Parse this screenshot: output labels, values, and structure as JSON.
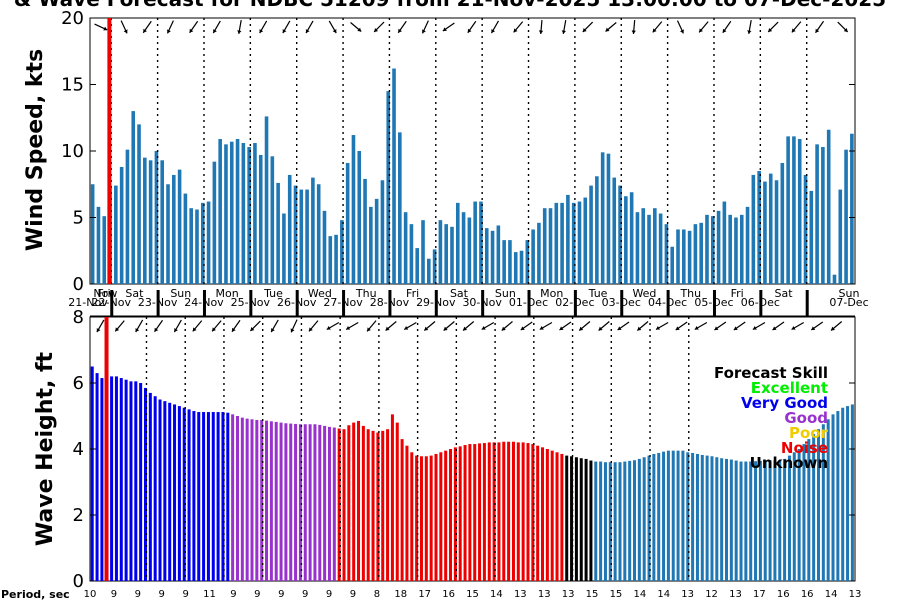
{
  "title": "& Wave Forecast for NDBC 51209 from 21-Nov-2025 13:00:00 to 07-Dec-2025",
  "colors": {
    "bar": "#1f77b4",
    "now_line": "#ee0000",
    "skill_excellent": "#00ee00",
    "skill_very_good": "#0000ee",
    "skill_good": "#9932cc",
    "skill_poor": "#eecc00",
    "skill_noise": "#ee0000",
    "skill_unknown": "#000000"
  },
  "now_label": "Now",
  "period_label": "Period, sec",
  "days": [
    {
      "dow": "Fri",
      "date": "21-Nov"
    },
    {
      "dow": "Sat",
      "date": "22-Nov"
    },
    {
      "dow": "Sun",
      "date": "23-Nov"
    },
    {
      "dow": "Mon",
      "date": "24-Nov"
    },
    {
      "dow": "Tue",
      "date": "25-Nov"
    },
    {
      "dow": "Wed",
      "date": "26-Nov"
    },
    {
      "dow": "Thu",
      "date": "27-Nov"
    },
    {
      "dow": "Fri",
      "date": "28-Nov"
    },
    {
      "dow": "Sat",
      "date": "29-Nov"
    },
    {
      "dow": "Sun",
      "date": "30-Nov"
    },
    {
      "dow": "Mon",
      "date": "01-Dec"
    },
    {
      "dow": "Tue",
      "date": "02-Dec"
    },
    {
      "dow": "Wed",
      "date": "03-Dec"
    },
    {
      "dow": "Thu",
      "date": "04-Dec"
    },
    {
      "dow": "Fri",
      "date": "05-Dec"
    },
    {
      "dow": "Sat",
      "date": "06-Dec"
    },
    {
      "dow": "Sun",
      "date": "07-Dec"
    }
  ],
  "legend": {
    "title": "Forecast Skill",
    "items": [
      "Excellent",
      "Very Good",
      "Good",
      "Poor",
      "Noise",
      "Unknown"
    ]
  },
  "chart_data": [
    {
      "type": "bar",
      "ylabel": "Wind Speed, kts",
      "ylim": [
        0,
        20
      ],
      "yticks": [
        0,
        5,
        10,
        15,
        20
      ],
      "x_start": "21-Nov-2025 13:00:00",
      "x_end": "07-Dec-2025",
      "step_hours": 3,
      "values": [
        7.5,
        5.8,
        5.1,
        7.4,
        7.4,
        8.8,
        10.1,
        13.0,
        12.0,
        9.5,
        9.3,
        10.0,
        9.3,
        7.5,
        8.2,
        8.6,
        6.8,
        5.7,
        5.6,
        6.1,
        6.2,
        9.2,
        10.9,
        10.5,
        10.7,
        10.9,
        10.6,
        10.3,
        10.6,
        9.7,
        12.6,
        9.6,
        7.6,
        5.3,
        8.2,
        7.4,
        7.1,
        7.1,
        8.0,
        7.5,
        5.5,
        3.6,
        3.7,
        4.8,
        9.1,
        11.2,
        10.0,
        7.9,
        5.8,
        6.4,
        7.8,
        14.5,
        16.2,
        11.4,
        5.4,
        4.5,
        2.7,
        4.8,
        1.9,
        2.6,
        4.8,
        4.5,
        4.3,
        6.1,
        5.4,
        5.0,
        6.2,
        6.2,
        4.2,
        4.0,
        4.4,
        3.3,
        3.3,
        2.4,
        2.5,
        3.3,
        4.1,
        4.6,
        5.7,
        5.7,
        6.1,
        6.1,
        6.7,
        6.1,
        6.2,
        6.5,
        7.4,
        8.1,
        9.9,
        9.8,
        8.0,
        7.4,
        6.6,
        6.9,
        5.4,
        5.7,
        5.2,
        5.7,
        5.3,
        4.5,
        2.8,
        4.1,
        4.1,
        4.0,
        4.5,
        4.6,
        5.2,
        5.1,
        5.5,
        6.2,
        5.2,
        5.0,
        5.2,
        5.8,
        8.2,
        8.5,
        7.7,
        8.3,
        7.8,
        9.1,
        11.1,
        11.1,
        10.9,
        8.2,
        7.0,
        10.5,
        10.3,
        11.6,
        0.7,
        7.1,
        10.1,
        11.3
      ],
      "wind_dir_deg": [
        25,
        20,
        20,
        55,
        65,
        70,
        110,
        120,
        125,
        130,
        125,
        120,
        115,
        115,
        120,
        120,
        125,
        120,
        120,
        125,
        120,
        115,
        105,
        110,
        100,
        130,
        135,
        115,
        120,
        130,
        110,
        120,
        120,
        125,
        135,
        130,
        120,
        135,
        135,
        45,
        60,
        65,
        55,
        55,
        40,
        130,
        125,
        130,
        135,
        135,
        135,
        135,
        125,
        110,
        115,
        125,
        115,
        115,
        130,
        150,
        145,
        140,
        95,
        120,
        125,
        125,
        115,
        115,
        120,
        110,
        120,
        100,
        130,
        120,
        100,
        100,
        95,
        95,
        80,
        60,
        100,
        120,
        125,
        130,
        135,
        130,
        130,
        115,
        140,
        125,
        125,
        100,
        95,
        115,
        130,
        125,
        130,
        45,
        60,
        70,
        65,
        120,
        130,
        135,
        130,
        125,
        125,
        130,
        125,
        125,
        130,
        120,
        100,
        120,
        135,
        130,
        135,
        125,
        110,
        130,
        130,
        130,
        120,
        130,
        125,
        120,
        130,
        130,
        45,
        55,
        95,
        35
      ]
    },
    {
      "type": "bar",
      "ylabel": "Wave Height, ft",
      "ylim": [
        0,
        8
      ],
      "yticks": [
        0,
        2,
        4,
        6,
        8
      ],
      "x_start": "21-Nov-2025 13:00:00",
      "x_end": "07-Dec-2025",
      "step_hours": 3,
      "values": [
        6.5,
        6.3,
        6.15,
        6.15,
        6.2,
        6.2,
        6.15,
        6.1,
        6.05,
        6.05,
        6.0,
        5.85,
        5.7,
        5.6,
        5.5,
        5.45,
        5.4,
        5.35,
        5.3,
        5.25,
        5.2,
        5.15,
        5.12,
        5.12,
        5.12,
        5.12,
        5.12,
        5.12,
        5.1,
        5.05,
        5.0,
        4.95,
        4.92,
        4.9,
        4.88,
        4.88,
        4.86,
        4.84,
        4.82,
        4.8,
        4.78,
        4.77,
        4.76,
        4.75,
        4.75,
        4.75,
        4.75,
        4.73,
        4.7,
        4.67,
        4.65,
        4.62,
        4.6,
        4.72,
        4.8,
        4.85,
        4.7,
        4.6,
        4.55,
        4.5,
        4.55,
        4.6,
        5.05,
        4.8,
        4.3,
        4.1,
        3.9,
        3.8,
        3.78,
        3.78,
        3.8,
        3.85,
        3.9,
        3.95,
        4.0,
        4.05,
        4.08,
        4.12,
        4.15,
        4.15,
        4.17,
        4.18,
        4.2,
        4.2,
        4.2,
        4.22,
        4.22,
        4.22,
        4.2,
        4.2,
        4.18,
        4.15,
        4.1,
        4.05,
        4.0,
        3.95,
        3.9,
        3.85,
        3.8,
        3.78,
        3.75,
        3.72,
        3.7,
        3.65,
        3.62,
        3.62,
        3.6,
        3.6,
        3.6,
        3.6,
        3.62,
        3.64,
        3.66,
        3.7,
        3.75,
        3.8,
        3.85,
        3.88,
        3.92,
        3.95,
        3.95,
        3.95,
        3.95,
        3.9,
        3.88,
        3.85,
        3.82,
        3.8,
        3.78,
        3.75,
        3.72,
        3.7,
        3.68,
        3.65,
        3.62,
        3.62,
        3.62,
        3.63,
        3.64,
        3.65,
        3.66,
        3.66,
        3.66,
        3.7,
        3.8,
        3.9,
        4.0,
        4.15,
        4.3,
        4.45,
        4.6,
        4.75,
        4.9,
        5.05,
        5.15,
        5.25,
        5.3,
        5.35
      ],
      "skill": [
        "very_good",
        "good",
        "noise",
        "unknown",
        "none"
      ],
      "skill_ranges": [
        [
          0,
          28,
          "very_good"
        ],
        [
          29,
          50,
          "good"
        ],
        [
          51,
          97,
          "noise"
        ],
        [
          98,
          103,
          "unknown"
        ],
        [
          104,
          200,
          "none"
        ]
      ],
      "wave_dir_deg": [
        120,
        130,
        120,
        125,
        130,
        130,
        120,
        125,
        120,
        125,
        120,
        130,
        125,
        130,
        120,
        125,
        120,
        125,
        130,
        115,
        130,
        125,
        130,
        110,
        130,
        125,
        135,
        130,
        125,
        125,
        130,
        120,
        135,
        130,
        135,
        130,
        120,
        125,
        130,
        125,
        115,
        130,
        125,
        120,
        130,
        135,
        140,
        145,
        150,
        145,
        150,
        140,
        150,
        140,
        150,
        145,
        130,
        125,
        130,
        125,
        140,
        135,
        125,
        145,
        150,
        145,
        150,
        145,
        140,
        150,
        145,
        150,
        140,
        145,
        150,
        145,
        140,
        150,
        145,
        140,
        150,
        145,
        150,
        145,
        140,
        145,
        150,
        140,
        145,
        150,
        140,
        145,
        150,
        145,
        140,
        150,
        145,
        140,
        150,
        145,
        140,
        145,
        150,
        145,
        140,
        150,
        145,
        150,
        145,
        140,
        150,
        145,
        140,
        150,
        145,
        140,
        150,
        145,
        140,
        150,
        145,
        140,
        150,
        145,
        150,
        145,
        140,
        150,
        145,
        150,
        145,
        140,
        145,
        150,
        145,
        140,
        150,
        145,
        140,
        150,
        145,
        150,
        145,
        140,
        150,
        145,
        140,
        150,
        145,
        140,
        150,
        145,
        140
      ],
      "period_ticks": [
        [
          "10",
          0.0
        ],
        [
          "9",
          1.0
        ],
        [
          "9",
          2.0
        ],
        [
          "9",
          3.0
        ],
        [
          "9",
          4.0
        ],
        [
          "11",
          5.0
        ],
        [
          "9",
          6.0
        ],
        [
          "9",
          7.0
        ],
        [
          "9",
          8.0
        ],
        [
          "9",
          9.0
        ],
        [
          "9",
          10.0
        ],
        [
          "9",
          11.0
        ],
        [
          "8",
          12.0
        ],
        [
          "18",
          13.0
        ],
        [
          "17",
          14.0
        ],
        [
          "16",
          15.0
        ],
        [
          "15",
          16.0
        ],
        [
          "14",
          17.0
        ],
        [
          "13",
          18.0
        ],
        [
          "13",
          19.0
        ],
        [
          "13",
          20.0
        ],
        [
          "15",
          21.0
        ],
        [
          "15",
          22.0
        ],
        [
          "14",
          23.0
        ],
        [
          "14",
          24.0
        ],
        [
          "13",
          25.0
        ],
        [
          "12",
          26.0
        ],
        [
          "13",
          27.0
        ],
        [
          "17",
          28.0
        ],
        [
          "16",
          29.0
        ],
        [
          "16",
          30.0
        ],
        [
          "14",
          31.0
        ],
        [
          "13",
          32.0
        ]
      ]
    }
  ]
}
